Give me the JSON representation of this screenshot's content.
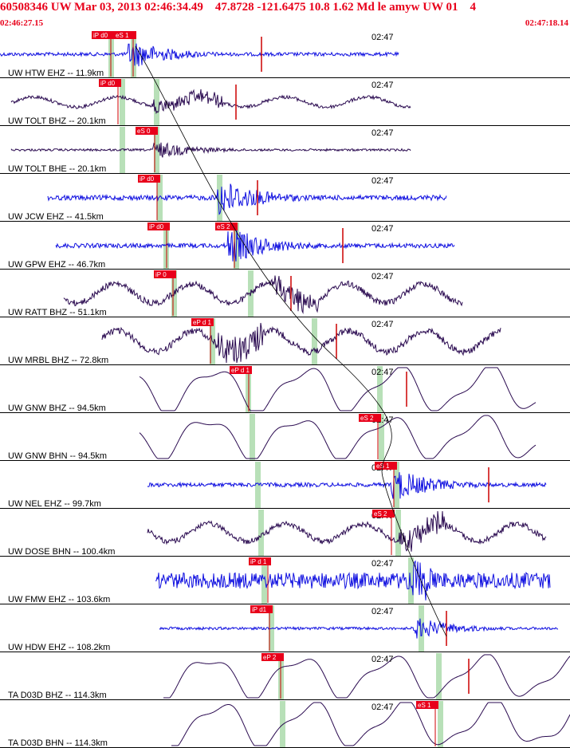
{
  "header": {
    "line1": "60508346 UW Mar 03, 2013 02:46:34.49    47.8728 -121.6475 10.8 1.62 Md le amyw UW 01    4",
    "start_time": "02:46:27.15",
    "end_time": "02:47:18.14"
  },
  "time_marker_label": "02:47",
  "colors": {
    "header_text": "#e8001a",
    "pick_box": "#e8001a",
    "trace_blue": "#1010e0",
    "trace_dark": "#2a0a50",
    "window_green": "#b8e0b8",
    "separator": "#000000"
  },
  "traces": [
    {
      "label": "UW HTW EHZ -- 11.9km",
      "color": "blue",
      "picks": [
        "iP d0",
        "eS 1"
      ]
    },
    {
      "label": "UW TOLT BHZ -- 20.1km",
      "color": "dark",
      "picks": [
        "iP d0"
      ]
    },
    {
      "label": "UW TOLT BHE -- 20.1km",
      "color": "dark",
      "picks": [
        "eS 0"
      ]
    },
    {
      "label": "UW JCW EHZ -- 41.5km",
      "color": "blue",
      "picks": [
        "iP d0"
      ]
    },
    {
      "label": "UW GPW EHZ -- 46.7km",
      "color": "blue",
      "picks": [
        "iP d0",
        "eS 2"
      ]
    },
    {
      "label": "UW RATT BHZ -- 51.1km",
      "color": "dark",
      "picks": [
        "iP 0"
      ]
    },
    {
      "label": "UW MRBL BHZ -- 72.8km",
      "color": "dark",
      "picks": [
        "eP d 1"
      ]
    },
    {
      "label": "UW GNW BHZ -- 94.5km",
      "color": "dark",
      "picks": [
        "eP d 1"
      ]
    },
    {
      "label": "UW GNW BHN -- 94.5km",
      "color": "dark",
      "picks": [
        "eS 2"
      ]
    },
    {
      "label": "UW NEL EHZ -- 99.7km",
      "color": "blue",
      "picks": [
        "eS 1"
      ]
    },
    {
      "label": "UW DOSE BHN -- 100.4km",
      "color": "dark",
      "picks": [
        "eS 2"
      ]
    },
    {
      "label": "UW FMW EHZ -- 103.6km",
      "color": "blue",
      "picks": [
        "iP d 1"
      ]
    },
    {
      "label": "UW HDW EHZ -- 108.2km",
      "color": "blue",
      "picks": [
        "iP d1"
      ]
    },
    {
      "label": "TA D03D BHZ -- 114.3km",
      "color": "dark",
      "picks": [
        "eP 2"
      ]
    },
    {
      "label": "TA D03D BHN -- 114.3km",
      "color": "dark",
      "picks": [
        "eS 1"
      ]
    }
  ]
}
